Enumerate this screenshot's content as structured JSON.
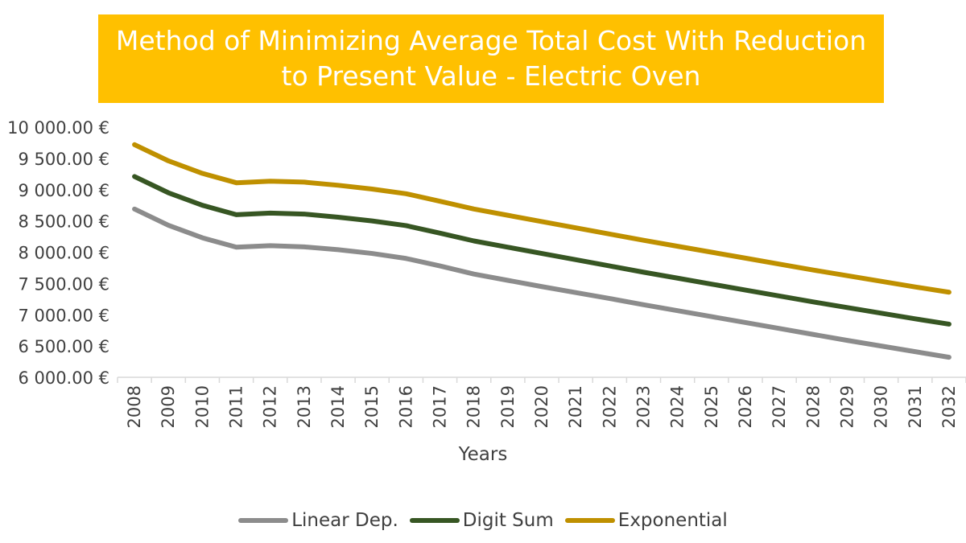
{
  "chart_data": {
    "type": "line",
    "title": "Method of Minimizing Average Total Cost With Reduction to Present Value - Electric Oven",
    "xlabel": "Years",
    "ylabel": "",
    "ylim": [
      6000,
      10000
    ],
    "y_ticks": [
      "6 000.00 €",
      "6 500.00 €",
      "7 000.00 €",
      "7 500.00 €",
      "8 000.00 €",
      "8 500.00 €",
      "9 000.00 €",
      "9 500.00 €",
      "10 000.00 €"
    ],
    "y_tick_values": [
      6000,
      6500,
      7000,
      7500,
      8000,
      8500,
      9000,
      9500,
      10000
    ],
    "categories": [
      "2008",
      "2009",
      "2010",
      "2011",
      "2012",
      "2013",
      "2014",
      "2015",
      "2016",
      "2017",
      "2018",
      "2019",
      "2020",
      "2021",
      "2022",
      "2023",
      "2024",
      "2025",
      "2026",
      "2027",
      "2028",
      "2029",
      "2030",
      "2031",
      "2032"
    ],
    "series": [
      {
        "name": "Linear Dep.",
        "color": "#8c8c8c",
        "values": [
          8690,
          8430,
          8230,
          8080,
          8105,
          8085,
          8040,
          7980,
          7900,
          7780,
          7650,
          7550,
          7450,
          7355,
          7260,
          7160,
          7065,
          6970,
          6875,
          6780,
          6685,
          6590,
          6500,
          6410,
          6320
        ]
      },
      {
        "name": "Digit Sum",
        "color": "#375623",
        "values": [
          9210,
          8950,
          8750,
          8600,
          8625,
          8610,
          8560,
          8500,
          8425,
          8305,
          8180,
          8080,
          7980,
          7880,
          7780,
          7680,
          7585,
          7490,
          7395,
          7300,
          7205,
          7115,
          7025,
          6935,
          6850
        ]
      },
      {
        "name": "Exponential",
        "color": "#bf9000",
        "values": [
          9720,
          9460,
          9260,
          9110,
          9135,
          9120,
          9070,
          9010,
          8935,
          8815,
          8690,
          8590,
          8490,
          8390,
          8290,
          8190,
          8095,
          8000,
          7905,
          7810,
          7715,
          7625,
          7535,
          7445,
          7360
        ]
      }
    ],
    "legend_position": "bottom",
    "grid": false,
    "title_background": "#ffc000"
  }
}
